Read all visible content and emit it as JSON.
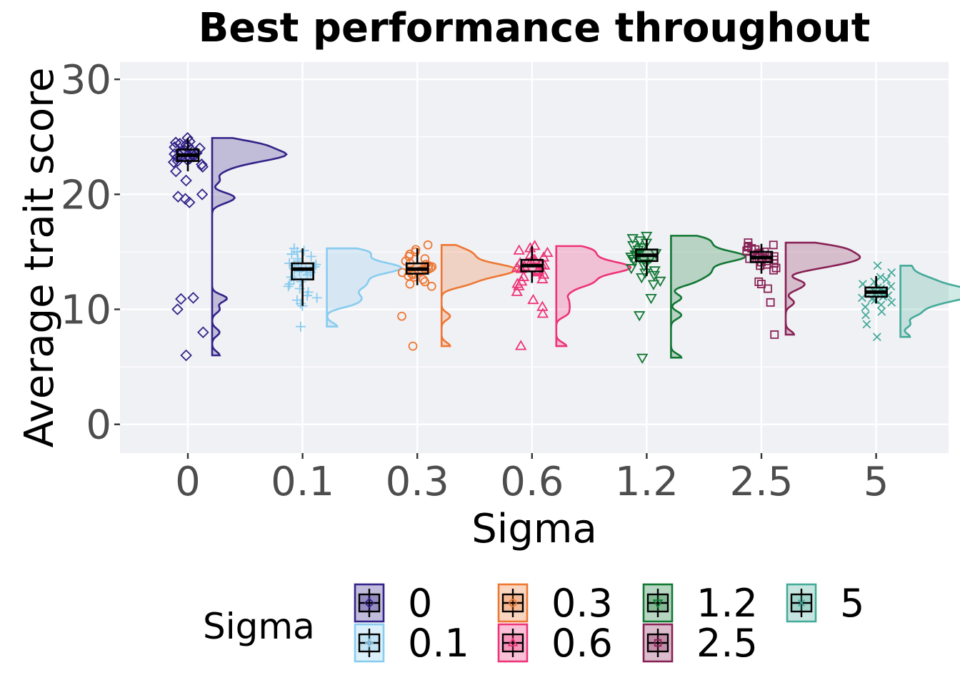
{
  "chart_data": {
    "type": "raincloud",
    "title": "Best performance throughout",
    "xlabel": "Sigma",
    "ylabel": "Average trait score",
    "categories": [
      "0",
      "0.1",
      "0.3",
      "0.6",
      "1.2",
      "2.5",
      "5"
    ],
    "ylim": [
      -2.5,
      31.5
    ],
    "yticks": [
      0,
      10,
      20,
      30
    ],
    "grid": true,
    "legend": {
      "title": "Sigma",
      "position": "bottom",
      "items": [
        "0",
        "0.1",
        "0.3",
        "0.6",
        "1.2",
        "2.5",
        "5"
      ]
    },
    "series": [
      {
        "name": "0",
        "color": "#332288",
        "marker": "diamond",
        "box": {
          "min": 22.0,
          "q1": 22.9,
          "median": 23.4,
          "q3": 23.9,
          "max": 24.9
        },
        "points": [
          24.9,
          24.6,
          24.5,
          24.4,
          24.3,
          24.2,
          24.1,
          24.0,
          23.9,
          23.8,
          23.7,
          23.6,
          23.5,
          23.5,
          23.4,
          23.4,
          23.3,
          23.2,
          23.1,
          23.0,
          22.9,
          22.8,
          22.6,
          22.4,
          22.0,
          21.2,
          20.0,
          19.8,
          19.6,
          19.3,
          11.0,
          10.9,
          10.0,
          8.0,
          6.0
        ]
      },
      {
        "name": "0.1",
        "color": "#88ccee",
        "marker": "plus",
        "box": {
          "min": 10.3,
          "q1": 12.6,
          "median": 13.5,
          "q3": 14.0,
          "max": 15.3
        },
        "points": [
          15.3,
          15.1,
          15.0,
          14.8,
          14.6,
          14.4,
          14.2,
          14.0,
          13.9,
          13.8,
          13.7,
          13.6,
          13.5,
          13.4,
          13.3,
          13.2,
          13.0,
          12.8,
          12.6,
          12.4,
          12.2,
          12.0,
          11.8,
          11.5,
          11.2,
          11.0,
          10.8,
          10.5,
          10.3,
          8.5
        ]
      },
      {
        "name": "0.3",
        "color": "#ee7733",
        "marker": "circle",
        "box": {
          "min": 12.1,
          "q1": 13.1,
          "median": 13.5,
          "q3": 14.0,
          "max": 15.3
        },
        "points": [
          15.6,
          15.2,
          15.0,
          14.8,
          14.6,
          14.4,
          14.2,
          14.0,
          13.9,
          13.8,
          13.7,
          13.6,
          13.5,
          13.5,
          13.4,
          13.3,
          13.2,
          13.1,
          13.0,
          12.9,
          12.8,
          12.6,
          12.4,
          12.2,
          12.0,
          9.4,
          6.8
        ]
      },
      {
        "name": "0.6",
        "color": "#ee3377",
        "marker": "triangle-up",
        "box": {
          "min": 12.3,
          "q1": 13.3,
          "median": 13.8,
          "q3": 14.3,
          "max": 15.5
        },
        "points": [
          15.5,
          15.3,
          15.1,
          14.9,
          14.7,
          14.5,
          14.3,
          14.1,
          14.0,
          13.9,
          13.8,
          13.7,
          13.6,
          13.5,
          13.4,
          13.3,
          13.2,
          13.0,
          12.8,
          12.6,
          12.4,
          12.2,
          12.0,
          11.5,
          10.8,
          10.2,
          9.6,
          6.8
        ]
      },
      {
        "name": "1.2",
        "color": "#117733",
        "marker": "triangle-down",
        "box": {
          "min": 12.9,
          "q1": 14.2,
          "median": 14.7,
          "q3": 15.2,
          "max": 16.1
        },
        "points": [
          16.4,
          16.2,
          16.0,
          15.8,
          15.6,
          15.4,
          15.2,
          15.0,
          14.9,
          14.8,
          14.7,
          14.6,
          14.5,
          14.4,
          14.3,
          14.2,
          14.0,
          13.8,
          13.6,
          13.4,
          13.2,
          13.0,
          12.8,
          12.5,
          12.2,
          11.0,
          9.5,
          5.8
        ]
      },
      {
        "name": "2.5",
        "color": "#882255",
        "marker": "square",
        "box": {
          "min": 13.1,
          "q1": 14.1,
          "median": 14.5,
          "q3": 15.0,
          "max": 15.7
        },
        "points": [
          15.8,
          15.6,
          15.5,
          15.4,
          15.3,
          15.2,
          15.1,
          15.0,
          14.9,
          14.8,
          14.7,
          14.6,
          14.5,
          14.5,
          14.4,
          14.3,
          14.2,
          14.1,
          14.0,
          13.9,
          13.8,
          13.6,
          13.4,
          12.4,
          12.2,
          11.8,
          10.6,
          7.8
        ]
      },
      {
        "name": "5",
        "color": "#44aa99",
        "marker": "cross",
        "box": {
          "min": 10.5,
          "q1": 11.1,
          "median": 11.5,
          "q3": 11.9,
          "max": 12.9
        },
        "points": [
          13.8,
          13.2,
          12.8,
          12.6,
          12.4,
          12.2,
          12.0,
          11.9,
          11.8,
          11.7,
          11.6,
          11.5,
          11.4,
          11.3,
          11.2,
          11.1,
          11.0,
          10.9,
          10.8,
          10.6,
          10.4,
          10.2,
          9.8,
          9.5,
          8.7,
          7.6
        ]
      }
    ]
  }
}
